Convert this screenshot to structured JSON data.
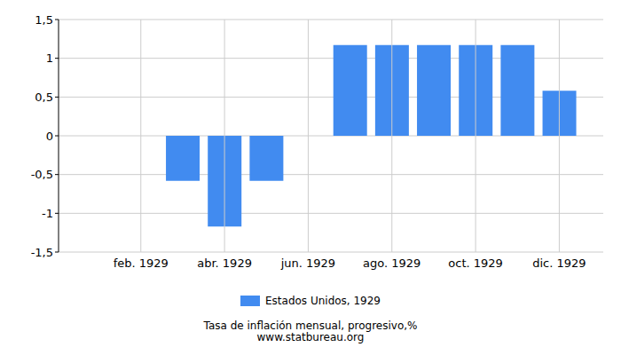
{
  "chart_data": {
    "type": "bar",
    "title": "Tasa de inflación mensual, progresivo,%",
    "subtitle": "www.statbureau.org",
    "categories": [
      null,
      "feb. 1929",
      null,
      "abr. 1929",
      null,
      "jun. 1929",
      null,
      "ago. 1929",
      null,
      "oct. 1929",
      null,
      "dic. 1929"
    ],
    "series": [
      {
        "name": "Estados Unidos, 1929",
        "color": "#418bf0",
        "values": [
          0,
          0,
          -0.58,
          -1.17,
          -0.58,
          0,
          1.17,
          1.17,
          1.17,
          1.17,
          1.17,
          0.58
        ]
      }
    ],
    "ylim": [
      -1.5,
      1.5
    ],
    "yticks": [
      {
        "value": -1.5,
        "label": "-1,5"
      },
      -1,
      {
        "value": -0.5,
        "label": "-0,5"
      },
      0,
      {
        "value": 0.5,
        "label": "0,5"
      },
      1,
      {
        "value": 1.5,
        "label": "1,5"
      }
    ],
    "grid": true,
    "legend": "bottom"
  }
}
